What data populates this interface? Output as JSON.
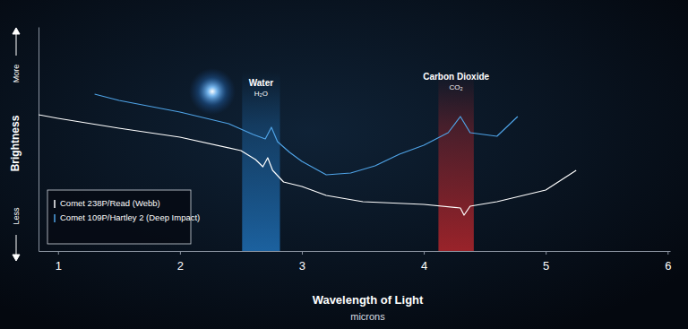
{
  "chart_data": {
    "type": "line",
    "x_label": "Wavelength of Light",
    "x_unit": "microns",
    "y_label": "Brightness",
    "y_high_label": "More",
    "y_low_label": "Less",
    "xlim": [
      0.84,
      6.02
    ],
    "xticks": [
      1,
      2,
      3,
      4,
      5,
      6
    ],
    "ylim": [
      0,
      100
    ],
    "tick_labels": "x",
    "legend": "bottom-left",
    "series": [
      {
        "name": "Comet 238P/Read (Webb)",
        "color": "#ffffff",
        "x": [
          0.84,
          1.0,
          1.5,
          2.0,
          2.5,
          2.62,
          2.68,
          2.72,
          2.76,
          2.85,
          3.0,
          3.2,
          3.5,
          4.0,
          4.3,
          4.33,
          4.38,
          4.6,
          5.0,
          5.25
        ],
        "values": [
          60.8,
          59.2,
          54.8,
          50.8,
          44.8,
          40.8,
          37.6,
          41.6,
          36,
          30.8,
          28.8,
          24.8,
          22,
          20.8,
          19.2,
          16,
          20,
          22,
          27.2,
          36
        ]
      },
      {
        "name": "Comet 109P/Hartley 2 (Deep Impact)",
        "color": "#4fa3e6",
        "x": [
          1.3,
          1.5,
          2.0,
          2.4,
          2.6,
          2.7,
          2.75,
          2.8,
          2.9,
          3.0,
          3.2,
          3.4,
          3.6,
          3.8,
          4.0,
          4.2,
          4.3,
          4.38,
          4.6,
          4.77
        ],
        "values": [
          70,
          67.2,
          62,
          56.8,
          52,
          50,
          55.2,
          48.8,
          44,
          40,
          34,
          34.8,
          38,
          43.2,
          47.2,
          52.8,
          60,
          52.8,
          51.2,
          60
        ]
      }
    ],
    "bands": [
      {
        "label": "Water",
        "formula": "H₂O",
        "color": "#1f6fb5",
        "x": [
          2.51,
          2.82
        ]
      },
      {
        "label": "Carbon Dioxide",
        "formula": "CO₂",
        "color": "#b3262c",
        "x": [
          4.12,
          4.41
        ]
      }
    ]
  }
}
